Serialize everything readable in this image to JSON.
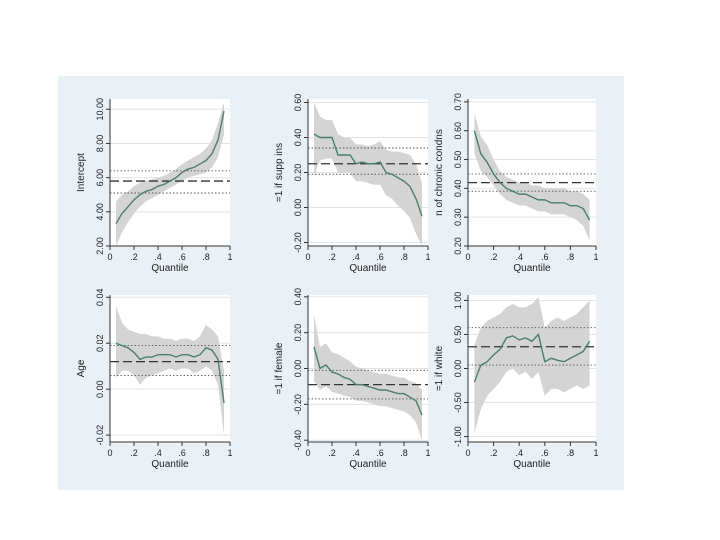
{
  "figure": {
    "background": "#e9f0f6",
    "plot_background": "#ffffff",
    "band_color": "#d4d4d4",
    "line_color": "#4a7f6c"
  },
  "chart_data": [
    {
      "type": "line",
      "ylabel": "Intercept",
      "xlabel": "Quantile",
      "xlim": [
        0,
        1
      ],
      "ylim": [
        2,
        10.6
      ],
      "xticks": [
        {
          "v": 0,
          "label": "0"
        },
        {
          "v": 0.2,
          "label": ".2"
        },
        {
          "v": 0.4,
          "label": ".4"
        },
        {
          "v": 0.6,
          "label": ".6"
        },
        {
          "v": 0.8,
          "label": ".8"
        },
        {
          "v": 1,
          "label": "1"
        }
      ],
      "yticks": [
        {
          "v": 2,
          "label": "2.00"
        },
        {
          "v": 4,
          "label": "4.00"
        },
        {
          "v": 6,
          "label": "6.00"
        },
        {
          "v": 8,
          "label": "8.00"
        },
        {
          "v": 10,
          "label": "10.00"
        }
      ],
      "quantiles": [
        0.05,
        0.1,
        0.15,
        0.2,
        0.25,
        0.3,
        0.35,
        0.4,
        0.45,
        0.5,
        0.55,
        0.6,
        0.65,
        0.7,
        0.75,
        0.8,
        0.85,
        0.9,
        0.95
      ],
      "estimate": [
        3.3,
        3.9,
        4.3,
        4.7,
        5.0,
        5.2,
        5.3,
        5.5,
        5.6,
        5.8,
        6.0,
        6.3,
        6.5,
        6.6,
        6.8,
        7.0,
        7.4,
        8.2,
        9.9
      ],
      "ci_lower": [
        2.0,
        2.8,
        3.4,
        3.9,
        4.3,
        4.6,
        4.8,
        5.0,
        5.2,
        5.4,
        5.6,
        5.8,
        6.0,
        6.1,
        6.2,
        6.3,
        6.6,
        7.2,
        8.5
      ],
      "ci_upper": [
        4.6,
        5.0,
        5.2,
        5.5,
        5.7,
        5.8,
        5.9,
        6.0,
        6.1,
        6.3,
        6.5,
        6.8,
        7.0,
        7.2,
        7.4,
        7.7,
        8.2,
        9.2,
        10.4
      ],
      "ols": 5.8,
      "ols_ci": [
        5.1,
        6.4
      ]
    },
    {
      "type": "line",
      "ylabel": "=1 if supp ins",
      "xlabel": "Quantile",
      "xlim": [
        0,
        1
      ],
      "ylim": [
        -0.22,
        0.62
      ],
      "xticks": [
        {
          "v": 0,
          "label": "0"
        },
        {
          "v": 0.2,
          "label": ".2"
        },
        {
          "v": 0.4,
          "label": ".4"
        },
        {
          "v": 0.6,
          "label": ".6"
        },
        {
          "v": 0.8,
          "label": ".8"
        },
        {
          "v": 1,
          "label": "1"
        }
      ],
      "yticks": [
        {
          "v": -0.2,
          "label": "-0.20"
        },
        {
          "v": 0,
          "label": "0.00"
        },
        {
          "v": 0.2,
          "label": "0.20"
        },
        {
          "v": 0.4,
          "label": "0.40"
        },
        {
          "v": 0.6,
          "label": "0.60"
        }
      ],
      "quantiles": [
        0.05,
        0.1,
        0.15,
        0.2,
        0.25,
        0.3,
        0.35,
        0.4,
        0.45,
        0.5,
        0.55,
        0.6,
        0.65,
        0.7,
        0.75,
        0.8,
        0.85,
        0.9,
        0.95
      ],
      "estimate": [
        0.42,
        0.4,
        0.4,
        0.4,
        0.3,
        0.3,
        0.3,
        0.25,
        0.26,
        0.25,
        0.25,
        0.26,
        0.2,
        0.19,
        0.17,
        0.15,
        0.12,
        0.05,
        -0.05
      ],
      "ci_lower": [
        0.18,
        0.27,
        0.28,
        0.28,
        0.2,
        0.2,
        0.2,
        0.15,
        0.15,
        0.14,
        0.13,
        0.13,
        0.07,
        0.05,
        0.01,
        -0.02,
        -0.06,
        -0.15,
        -0.22
      ],
      "ci_upper": [
        0.6,
        0.52,
        0.5,
        0.5,
        0.42,
        0.4,
        0.4,
        0.36,
        0.36,
        0.35,
        0.36,
        0.38,
        0.33,
        0.32,
        0.32,
        0.31,
        0.3,
        0.25,
        0.14
      ],
      "ols": 0.25,
      "ols_ci": [
        0.19,
        0.34
      ]
    },
    {
      "type": "line",
      "ylabel": "n of chronic condns",
      "xlabel": "Quantile",
      "xlim": [
        0,
        1
      ],
      "ylim": [
        0.2,
        0.71
      ],
      "xticks": [
        {
          "v": 0,
          "label": "0"
        },
        {
          "v": 0.2,
          "label": ".2"
        },
        {
          "v": 0.4,
          "label": ".4"
        },
        {
          "v": 0.6,
          "label": ".6"
        },
        {
          "v": 0.8,
          "label": ".8"
        },
        {
          "v": 1,
          "label": "1"
        }
      ],
      "yticks": [
        {
          "v": 0.2,
          "label": "0.20"
        },
        {
          "v": 0.3,
          "label": "0.30"
        },
        {
          "v": 0.4,
          "label": "0.40"
        },
        {
          "v": 0.5,
          "label": "0.50"
        },
        {
          "v": 0.6,
          "label": "0.60"
        },
        {
          "v": 0.7,
          "label": "0.70"
        }
      ],
      "quantiles": [
        0.05,
        0.1,
        0.15,
        0.2,
        0.25,
        0.3,
        0.35,
        0.4,
        0.45,
        0.5,
        0.55,
        0.6,
        0.65,
        0.7,
        0.75,
        0.8,
        0.85,
        0.9,
        0.95
      ],
      "estimate": [
        0.6,
        0.52,
        0.49,
        0.45,
        0.42,
        0.4,
        0.39,
        0.38,
        0.38,
        0.37,
        0.36,
        0.36,
        0.35,
        0.35,
        0.35,
        0.34,
        0.34,
        0.33,
        0.29
      ],
      "ci_lower": [
        0.52,
        0.46,
        0.44,
        0.41,
        0.38,
        0.36,
        0.35,
        0.34,
        0.34,
        0.33,
        0.32,
        0.32,
        0.31,
        0.31,
        0.31,
        0.3,
        0.29,
        0.27,
        0.22
      ],
      "ci_upper": [
        0.66,
        0.58,
        0.55,
        0.5,
        0.46,
        0.44,
        0.43,
        0.42,
        0.42,
        0.41,
        0.41,
        0.4,
        0.4,
        0.4,
        0.4,
        0.39,
        0.39,
        0.38,
        0.36
      ],
      "ols": 0.42,
      "ols_ci": [
        0.39,
        0.45
      ]
    },
    {
      "type": "line",
      "ylabel": "Age",
      "xlabel": "Quantile",
      "xlim": [
        0,
        1
      ],
      "ylim": [
        -0.023,
        0.041
      ],
      "xticks": [
        {
          "v": 0,
          "label": "0"
        },
        {
          "v": 0.2,
          "label": ".2"
        },
        {
          "v": 0.4,
          "label": ".4"
        },
        {
          "v": 0.6,
          "label": ".6"
        },
        {
          "v": 0.8,
          "label": ".8"
        },
        {
          "v": 1,
          "label": "1"
        }
      ],
      "yticks": [
        {
          "v": -0.02,
          "label": "-0.02"
        },
        {
          "v": 0,
          "label": "0.00"
        },
        {
          "v": 0.02,
          "label": "0.02"
        },
        {
          "v": 0.04,
          "label": "0.04"
        }
      ],
      "quantiles": [
        0.05,
        0.1,
        0.15,
        0.2,
        0.25,
        0.3,
        0.35,
        0.4,
        0.45,
        0.5,
        0.55,
        0.6,
        0.65,
        0.7,
        0.75,
        0.8,
        0.85,
        0.9,
        0.95
      ],
      "estimate": [
        0.02,
        0.019,
        0.018,
        0.016,
        0.013,
        0.014,
        0.014,
        0.015,
        0.015,
        0.015,
        0.014,
        0.015,
        0.015,
        0.014,
        0.015,
        0.018,
        0.017,
        0.013,
        -0.006
      ],
      "ci_lower": [
        0.005,
        0.008,
        0.008,
        0.006,
        0.002,
        0.005,
        0.006,
        0.007,
        0.008,
        0.009,
        0.008,
        0.009,
        0.009,
        0.007,
        0.008,
        0.01,
        0.008,
        0.002,
        -0.02
      ],
      "ci_upper": [
        0.036,
        0.029,
        0.026,
        0.025,
        0.024,
        0.024,
        0.023,
        0.023,
        0.022,
        0.022,
        0.021,
        0.022,
        0.022,
        0.021,
        0.023,
        0.028,
        0.026,
        0.023,
        0.008
      ],
      "ols": 0.012,
      "ols_ci": [
        0.006,
        0.019
      ]
    },
    {
      "type": "line",
      "ylabel": "=1 if female",
      "xlabel": "Quantile",
      "xlim": [
        0,
        1
      ],
      "ylim": [
        -0.41,
        0.41
      ],
      "xticks": [
        {
          "v": 0,
          "label": "0"
        },
        {
          "v": 0.2,
          "label": ".2"
        },
        {
          "v": 0.4,
          "label": ".4"
        },
        {
          "v": 0.6,
          "label": ".6"
        },
        {
          "v": 0.8,
          "label": ".8"
        },
        {
          "v": 1,
          "label": "1"
        }
      ],
      "yticks": [
        {
          "v": -0.4,
          "label": "-0.40"
        },
        {
          "v": -0.2,
          "label": "-0.20"
        },
        {
          "v": 0,
          "label": "0.00"
        },
        {
          "v": 0.2,
          "label": "0.20"
        },
        {
          "v": 0.4,
          "label": "0.40"
        }
      ],
      "quantiles": [
        0.05,
        0.1,
        0.15,
        0.2,
        0.25,
        0.3,
        0.35,
        0.4,
        0.45,
        0.5,
        0.55,
        0.6,
        0.65,
        0.7,
        0.75,
        0.8,
        0.85,
        0.9,
        0.95
      ],
      "estimate": [
        0.12,
        0.0,
        0.02,
        -0.02,
        -0.03,
        -0.05,
        -0.06,
        -0.09,
        -0.09,
        -0.1,
        -0.11,
        -0.12,
        -0.12,
        -0.13,
        -0.14,
        -0.14,
        -0.16,
        -0.18,
        -0.26
      ],
      "ci_lower": [
        -0.07,
        -0.12,
        -0.1,
        -0.13,
        -0.14,
        -0.15,
        -0.16,
        -0.18,
        -0.18,
        -0.19,
        -0.2,
        -0.21,
        -0.21,
        -0.22,
        -0.23,
        -0.24,
        -0.26,
        -0.3,
        -0.4
      ],
      "ci_upper": [
        0.3,
        0.12,
        0.14,
        0.09,
        0.08,
        0.06,
        0.04,
        0.01,
        0.0,
        -0.01,
        -0.02,
        -0.03,
        -0.03,
        -0.04,
        -0.05,
        -0.05,
        -0.07,
        -0.08,
        -0.12
      ],
      "ols": -0.09,
      "ols_ci": [
        -0.17,
        -0.01
      ]
    },
    {
      "type": "line",
      "ylabel": "=1 if white",
      "xlabel": "Quantile",
      "xlim": [
        0,
        1
      ],
      "ylim": [
        -1.08,
        1.08
      ],
      "xticks": [
        {
          "v": 0,
          "label": "0"
        },
        {
          "v": 0.2,
          "label": ".2"
        },
        {
          "v": 0.4,
          "label": ".4"
        },
        {
          "v": 0.6,
          "label": ".6"
        },
        {
          "v": 0.8,
          "label": ".8"
        },
        {
          "v": 1,
          "label": "1"
        }
      ],
      "yticks": [
        {
          "v": -1,
          "label": "-1.00"
        },
        {
          "v": -0.5,
          "label": "-0.50"
        },
        {
          "v": 0,
          "label": "0.00"
        },
        {
          "v": 0.5,
          "label": "0.50"
        },
        {
          "v": 1,
          "label": "1.00"
        }
      ],
      "quantiles": [
        0.05,
        0.1,
        0.15,
        0.2,
        0.25,
        0.3,
        0.35,
        0.4,
        0.45,
        0.5,
        0.55,
        0.6,
        0.65,
        0.7,
        0.75,
        0.8,
        0.85,
        0.9,
        0.95
      ],
      "estimate": [
        -0.2,
        0.05,
        0.1,
        0.2,
        0.28,
        0.45,
        0.48,
        0.42,
        0.45,
        0.4,
        0.5,
        0.1,
        0.15,
        0.12,
        0.1,
        0.15,
        0.2,
        0.25,
        0.4
      ],
      "ci_lower": [
        -0.95,
        -0.6,
        -0.4,
        -0.3,
        -0.2,
        -0.05,
        0.0,
        -0.1,
        -0.05,
        -0.15,
        -0.05,
        -0.4,
        -0.3,
        -0.3,
        -0.35,
        -0.3,
        -0.25,
        -0.3,
        -0.25
      ],
      "ci_upper": [
        0.35,
        0.6,
        0.7,
        0.75,
        0.8,
        0.9,
        0.95,
        0.9,
        0.9,
        0.95,
        1.05,
        0.6,
        0.7,
        0.75,
        0.7,
        0.75,
        0.8,
        0.9,
        1.0
      ],
      "ols": 0.32,
      "ols_ci": [
        0.05,
        0.6
      ]
    }
  ]
}
